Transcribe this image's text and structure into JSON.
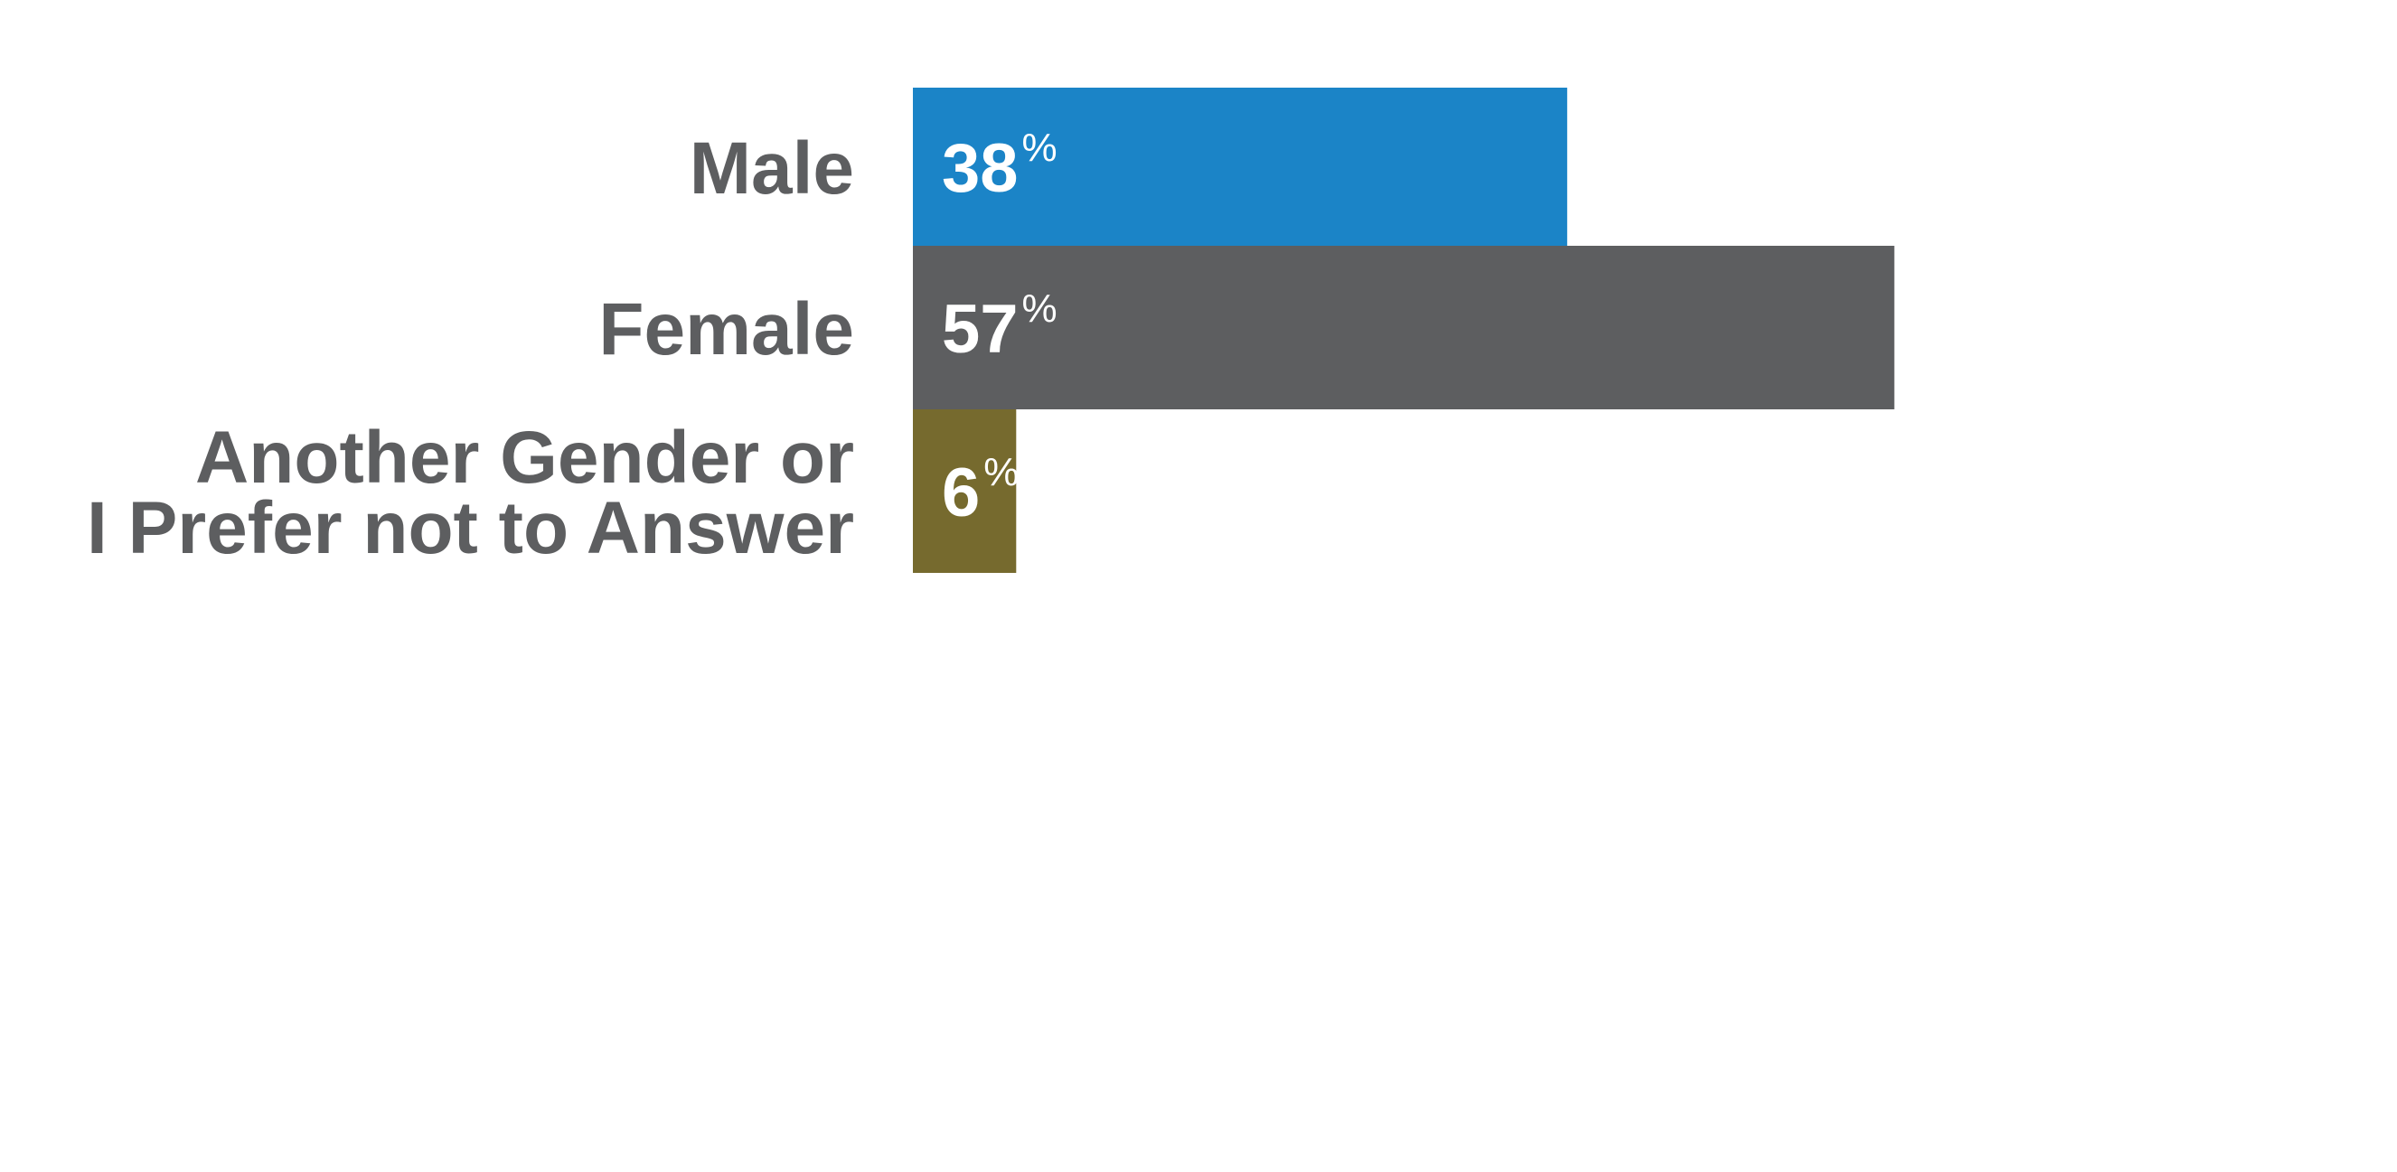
{
  "chart_data": {
    "type": "bar",
    "orientation": "horizontal",
    "categories": [
      "Male",
      "Female",
      "Another Gender or I Prefer not to Answer"
    ],
    "category_lines": [
      [
        "Male"
      ],
      [
        "Female"
      ],
      [
        "Another Gender or",
        "I Prefer not to Answer"
      ]
    ],
    "values": [
      38,
      57,
      6
    ],
    "value_labels": [
      "38",
      "57",
      "6"
    ],
    "unit_label": "%",
    "colors": [
      "#1b84c7",
      "#5d5e60",
      "#766a2e"
    ],
    "label_color": "#5d5e60",
    "value_label_color": "#ffffff",
    "xlim": [
      0,
      100
    ],
    "grid": false,
    "legend": "none"
  }
}
